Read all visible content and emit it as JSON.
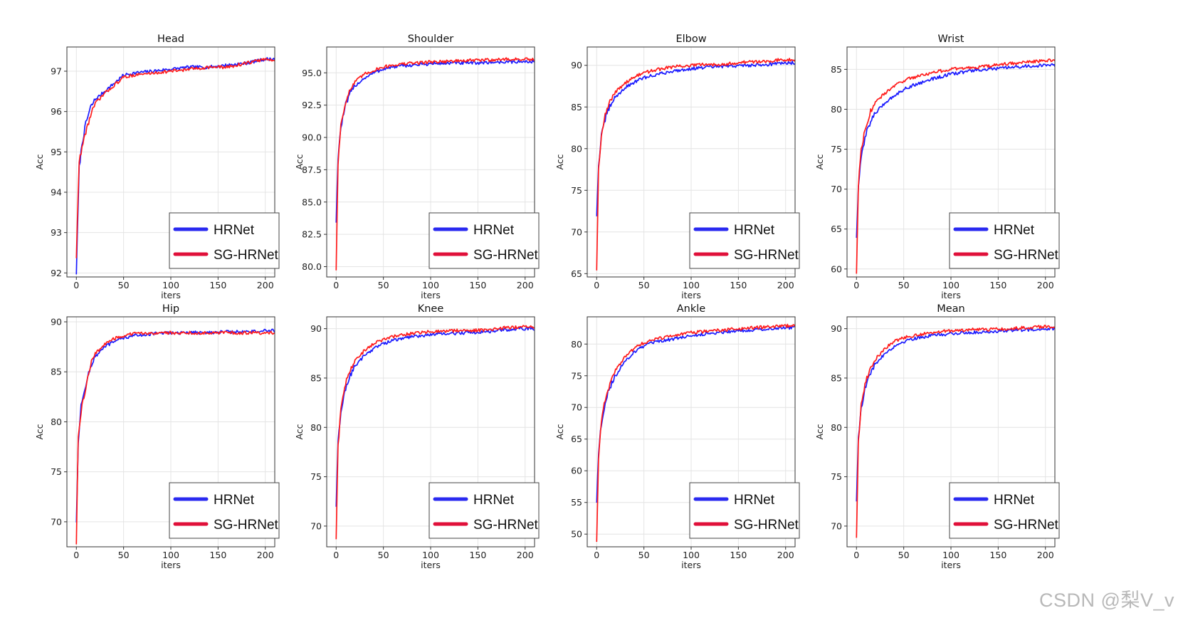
{
  "figure": {
    "watermark": "CSDN @梨V_v"
  },
  "colors": {
    "hrnet": "#1a1aff",
    "sg_hrnet": "#ff1a1a",
    "legend_hrnet": "#2a2af0",
    "legend_sg_hrnet": "#e0103a",
    "grid": "#e4e4e4",
    "axis": "#333333"
  },
  "chart_data": [
    {
      "type": "line",
      "title": "Head",
      "xlabel": "iters",
      "ylabel": "Acc",
      "xlim": [
        -10,
        210
      ],
      "ylim": [
        91.9,
        97.6
      ],
      "xticks": [
        0,
        50,
        100,
        150,
        200
      ],
      "yticks": [
        92,
        93,
        94,
        95,
        96,
        97
      ],
      "ytick_labels": [
        "92",
        "93",
        "94",
        "95",
        "96",
        "97"
      ],
      "legend": "lower-right",
      "series": [
        {
          "name": "HRNet",
          "color": "#1a1aff",
          "x": [
            0,
            3,
            6,
            10,
            15,
            20,
            30,
            40,
            50,
            60,
            80,
            100,
            120,
            140,
            160,
            180,
            200,
            210
          ],
          "y": [
            92.0,
            94.6,
            95.2,
            95.7,
            96.1,
            96.3,
            96.5,
            96.7,
            96.9,
            96.95,
            97.0,
            97.05,
            97.1,
            97.1,
            97.15,
            97.2,
            97.3,
            97.3
          ]
        },
        {
          "name": "SG-HRNet",
          "color": "#ff1a1a",
          "x": [
            0,
            3,
            6,
            10,
            15,
            20,
            30,
            40,
            50,
            60,
            80,
            100,
            120,
            140,
            160,
            180,
            200,
            210
          ],
          "y": [
            92.4,
            94.8,
            95.1,
            95.5,
            95.9,
            96.2,
            96.45,
            96.65,
            96.85,
            96.9,
            96.95,
            97.0,
            97.05,
            97.1,
            97.1,
            97.2,
            97.3,
            97.25
          ]
        }
      ]
    },
    {
      "type": "line",
      "title": "Shoulder",
      "xlabel": "iters",
      "ylabel": "Acc",
      "xlim": [
        -10,
        210
      ],
      "ylim": [
        79.2,
        97.0
      ],
      "xticks": [
        0,
        50,
        100,
        150,
        200
      ],
      "yticks": [
        80,
        82.5,
        85,
        87.5,
        90,
        92.5,
        95
      ],
      "ytick_labels": [
        "80.0",
        "82.5",
        "85.0",
        "87.5",
        "90.0",
        "92.5",
        "95.0"
      ],
      "legend": "lower-right",
      "series": [
        {
          "name": "HRNet",
          "color": "#1a1aff",
          "x": [
            0,
            2,
            5,
            10,
            15,
            20,
            30,
            40,
            50,
            60,
            80,
            100,
            120,
            140,
            160,
            180,
            200,
            210
          ],
          "y": [
            83.5,
            88.5,
            90.8,
            92.5,
            93.4,
            94.0,
            94.6,
            95.0,
            95.3,
            95.45,
            95.6,
            95.7,
            95.75,
            95.75,
            95.8,
            95.85,
            95.85,
            95.9
          ]
        },
        {
          "name": "SG-HRNet",
          "color": "#ff1a1a",
          "x": [
            0,
            2,
            5,
            10,
            15,
            20,
            30,
            40,
            50,
            60,
            80,
            100,
            120,
            140,
            160,
            180,
            200,
            210
          ],
          "y": [
            79.8,
            88.0,
            91.0,
            92.8,
            93.7,
            94.3,
            94.9,
            95.2,
            95.45,
            95.6,
            95.75,
            95.85,
            95.9,
            95.95,
            96.0,
            96.05,
            96.05,
            96.0
          ]
        }
      ]
    },
    {
      "type": "line",
      "title": "Elbow",
      "xlabel": "iters",
      "ylabel": "Acc",
      "xlim": [
        -10,
        210
      ],
      "ylim": [
        64.6,
        92.2
      ],
      "xticks": [
        0,
        50,
        100,
        150,
        200
      ],
      "yticks": [
        65,
        70,
        75,
        80,
        85,
        90
      ],
      "ytick_labels": [
        "65",
        "70",
        "75",
        "80",
        "85",
        "90"
      ],
      "legend": "lower-right",
      "series": [
        {
          "name": "HRNet",
          "color": "#1a1aff",
          "x": [
            0,
            2,
            5,
            10,
            15,
            20,
            30,
            40,
            50,
            60,
            80,
            100,
            120,
            140,
            160,
            180,
            200,
            210
          ],
          "y": [
            72.0,
            78.0,
            81.5,
            84.0,
            85.3,
            86.2,
            87.3,
            88.0,
            88.5,
            88.8,
            89.3,
            89.6,
            89.8,
            89.9,
            90.0,
            90.1,
            90.3,
            90.3
          ]
        },
        {
          "name": "SG-HRNet",
          "color": "#ff1a1a",
          "x": [
            0,
            2,
            5,
            10,
            15,
            20,
            30,
            40,
            50,
            60,
            80,
            100,
            120,
            140,
            160,
            180,
            200,
            210
          ],
          "y": [
            65.5,
            77.5,
            81.8,
            84.5,
            85.8,
            86.8,
            87.9,
            88.6,
            89.1,
            89.4,
            89.8,
            90.0,
            90.1,
            90.2,
            90.4,
            90.5,
            90.7,
            90.7
          ]
        }
      ]
    },
    {
      "type": "line",
      "title": "Wrist",
      "xlabel": "iters",
      "ylabel": "Acc",
      "xlim": [
        -10,
        210
      ],
      "ylim": [
        59.0,
        87.8
      ],
      "xticks": [
        0,
        50,
        100,
        150,
        200
      ],
      "yticks": [
        60,
        65,
        70,
        75,
        80,
        85
      ],
      "ytick_labels": [
        "60",
        "65",
        "70",
        "75",
        "80",
        "85"
      ],
      "legend": "lower-right",
      "series": [
        {
          "name": "HRNet",
          "color": "#1a1aff",
          "x": [
            0,
            2,
            5,
            10,
            15,
            20,
            30,
            40,
            50,
            60,
            80,
            100,
            120,
            140,
            160,
            180,
            200,
            210
          ],
          "y": [
            64.0,
            70.0,
            74.0,
            77.0,
            78.5,
            79.5,
            80.8,
            81.7,
            82.5,
            83.0,
            83.8,
            84.4,
            84.8,
            85.0,
            85.2,
            85.4,
            85.5,
            85.5
          ]
        },
        {
          "name": "SG-HRNet",
          "color": "#ff1a1a",
          "x": [
            0,
            2,
            5,
            10,
            15,
            20,
            30,
            40,
            50,
            60,
            80,
            100,
            120,
            140,
            160,
            180,
            200,
            210
          ],
          "y": [
            59.5,
            70.5,
            75.0,
            78.0,
            79.8,
            80.8,
            82.0,
            82.9,
            83.6,
            84.0,
            84.6,
            85.0,
            85.2,
            85.4,
            85.7,
            85.9,
            86.1,
            86.1
          ]
        }
      ]
    },
    {
      "type": "line",
      "title": "Hip",
      "xlabel": "iters",
      "ylabel": "Acc",
      "xlim": [
        -10,
        210
      ],
      "ylim": [
        67.5,
        90.5
      ],
      "xticks": [
        0,
        50,
        100,
        150,
        200
      ],
      "yticks": [
        70,
        75,
        80,
        85,
        90
      ],
      "ytick_labels": [
        "70",
        "75",
        "80",
        "85",
        "90"
      ],
      "legend": "lower-right",
      "series": [
        {
          "name": "HRNet",
          "color": "#1a1aff",
          "x": [
            0,
            2,
            5,
            10,
            15,
            20,
            30,
            40,
            50,
            60,
            80,
            100,
            120,
            140,
            160,
            180,
            200,
            210
          ],
          "y": [
            70.0,
            78.0,
            81.5,
            83.8,
            85.5,
            86.5,
            87.5,
            88.0,
            88.4,
            88.6,
            88.8,
            88.9,
            88.9,
            88.95,
            89.0,
            89.0,
            89.1,
            89.1
          ]
        },
        {
          "name": "SG-HRNet",
          "color": "#ff1a1a",
          "x": [
            0,
            2,
            5,
            10,
            15,
            20,
            30,
            40,
            50,
            60,
            80,
            100,
            120,
            140,
            160,
            180,
            200,
            210
          ],
          "y": [
            67.8,
            78.5,
            81.0,
            83.5,
            85.7,
            86.8,
            87.8,
            88.3,
            88.6,
            88.8,
            88.9,
            88.9,
            88.9,
            88.9,
            88.9,
            88.9,
            88.9,
            88.9
          ]
        }
      ]
    },
    {
      "type": "line",
      "title": "Knee",
      "xlabel": "iters",
      "ylabel": "Acc",
      "xlim": [
        -10,
        210
      ],
      "ylim": [
        67.9,
        91.2
      ],
      "xticks": [
        0,
        50,
        100,
        150,
        200
      ],
      "yticks": [
        70,
        75,
        80,
        85,
        90
      ],
      "ytick_labels": [
        "70",
        "75",
        "80",
        "85",
        "90"
      ],
      "legend": "lower-right",
      "series": [
        {
          "name": "HRNet",
          "color": "#1a1aff",
          "x": [
            0,
            2,
            5,
            10,
            15,
            20,
            30,
            40,
            50,
            60,
            80,
            100,
            120,
            140,
            160,
            180,
            200,
            210
          ],
          "y": [
            72.0,
            78.5,
            81.5,
            84.0,
            85.3,
            86.2,
            87.3,
            88.0,
            88.5,
            88.8,
            89.2,
            89.4,
            89.5,
            89.6,
            89.7,
            89.9,
            90.0,
            90.0
          ]
        },
        {
          "name": "SG-HRNet",
          "color": "#ff1a1a",
          "x": [
            0,
            2,
            5,
            10,
            15,
            20,
            30,
            40,
            50,
            60,
            80,
            100,
            120,
            140,
            160,
            180,
            200,
            210
          ],
          "y": [
            68.7,
            78.0,
            81.8,
            84.5,
            85.8,
            86.7,
            87.8,
            88.5,
            88.9,
            89.2,
            89.5,
            89.7,
            89.8,
            89.8,
            89.9,
            90.1,
            90.2,
            90.2
          ]
        }
      ]
    },
    {
      "type": "line",
      "title": "Ankle",
      "xlabel": "iters",
      "ylabel": "Acc",
      "xlim": [
        -10,
        210
      ],
      "ylim": [
        48.0,
        84.3
      ],
      "xticks": [
        0,
        50,
        100,
        150,
        200
      ],
      "yticks": [
        50,
        55,
        60,
        65,
        70,
        75,
        80
      ],
      "ytick_labels": [
        "50",
        "55",
        "60",
        "65",
        "70",
        "75",
        "80"
      ],
      "legend": "lower-right",
      "series": [
        {
          "name": "HRNet",
          "color": "#1a1aff",
          "x": [
            0,
            2,
            5,
            10,
            15,
            20,
            30,
            40,
            50,
            60,
            80,
            100,
            120,
            140,
            160,
            180,
            200,
            210
          ],
          "y": [
            55.0,
            63.0,
            67.5,
            71.5,
            73.5,
            75.0,
            77.3,
            78.8,
            79.7,
            80.2,
            80.8,
            81.3,
            81.7,
            82.0,
            82.2,
            82.4,
            82.6,
            82.6
          ]
        },
        {
          "name": "SG-HRNet",
          "color": "#ff1a1a",
          "x": [
            0,
            2,
            5,
            10,
            15,
            20,
            30,
            40,
            50,
            60,
            80,
            100,
            120,
            140,
            160,
            180,
            200,
            210
          ],
          "y": [
            48.8,
            62.0,
            68.0,
            72.0,
            74.2,
            75.8,
            78.0,
            79.4,
            80.2,
            80.7,
            81.3,
            81.8,
            82.1,
            82.3,
            82.5,
            82.7,
            82.9,
            82.9
          ]
        }
      ]
    },
    {
      "type": "line",
      "title": "Mean",
      "xlabel": "iters",
      "ylabel": "Acc",
      "xlim": [
        -10,
        210
      ],
      "ylim": [
        67.9,
        91.2
      ],
      "xticks": [
        0,
        50,
        100,
        150,
        200
      ],
      "yticks": [
        70,
        75,
        80,
        85,
        90
      ],
      "ytick_labels": [
        "70",
        "75",
        "80",
        "85",
        "90"
      ],
      "legend": "lower-right",
      "series": [
        {
          "name": "HRNet",
          "color": "#1a1aff",
          "x": [
            0,
            2,
            5,
            10,
            15,
            20,
            30,
            40,
            50,
            60,
            80,
            100,
            120,
            140,
            160,
            180,
            200,
            210
          ],
          "y": [
            72.5,
            79.0,
            82.0,
            84.3,
            85.5,
            86.4,
            87.5,
            88.2,
            88.7,
            89.0,
            89.3,
            89.5,
            89.6,
            89.7,
            89.8,
            89.9,
            90.0,
            90.0
          ]
        },
        {
          "name": "SG-HRNet",
          "color": "#ff1a1a",
          "x": [
            0,
            2,
            5,
            10,
            15,
            20,
            30,
            40,
            50,
            60,
            80,
            100,
            120,
            140,
            160,
            180,
            200,
            210
          ],
          "y": [
            68.8,
            78.5,
            82.3,
            84.8,
            86.0,
            86.9,
            88.0,
            88.7,
            89.1,
            89.3,
            89.6,
            89.8,
            89.9,
            89.9,
            90.0,
            90.1,
            90.2,
            90.2
          ]
        }
      ]
    }
  ]
}
